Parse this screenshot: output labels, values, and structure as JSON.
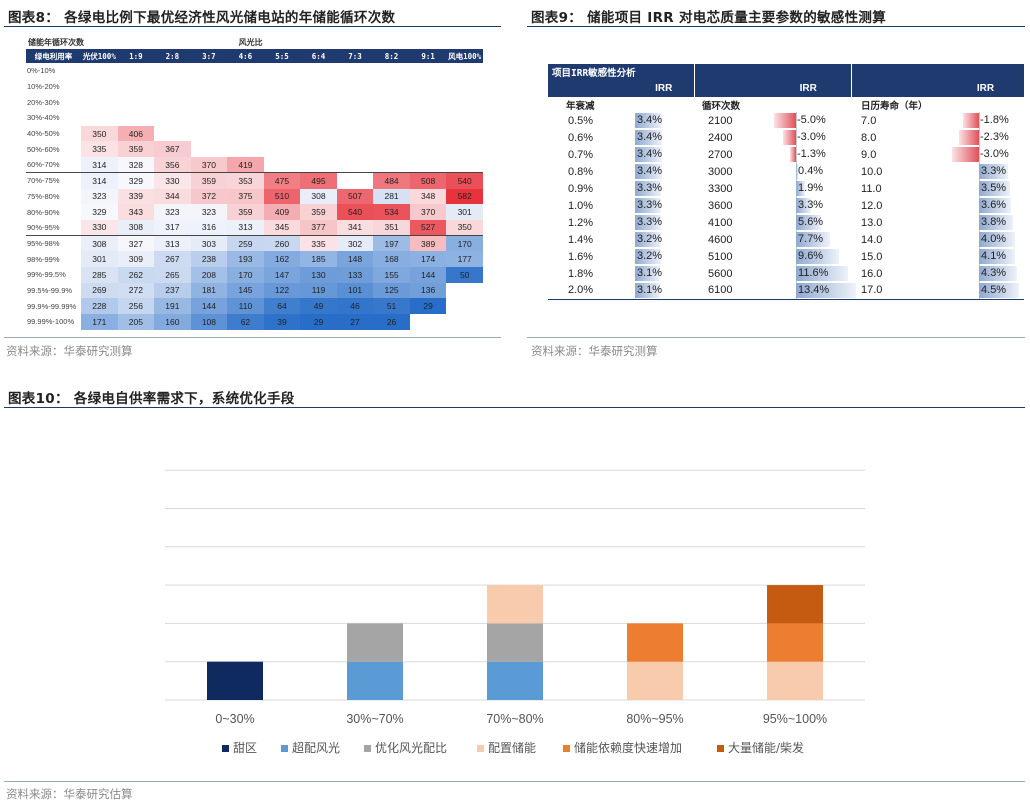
{
  "fig8": {
    "title": "图表8：  各绿电比例下最优经济性风光储电站的年储能循环次数",
    "top_left_label": "储能年循环次数",
    "top_mid_label": "风光比",
    "row_header": "绿电利用率",
    "columns": [
      "光伏100%",
      "1:9",
      "2:8",
      "3:7",
      "4:6",
      "5:5",
      "6:4",
      "7:3",
      "8:2",
      "9:1",
      "风电100%"
    ],
    "rows": [
      {
        "label": "0%-10%",
        "values": [
          "",
          "",
          "",
          "",
          "",
          "",
          "",
          "",
          "",
          "",
          ""
        ]
      },
      {
        "label": "10%-20%",
        "values": [
          "",
          "",
          "",
          "",
          "",
          "",
          "",
          "",
          "",
          "",
          ""
        ]
      },
      {
        "label": "20%-30%",
        "values": [
          "",
          "",
          "",
          "",
          "",
          "",
          "",
          "",
          "",
          "",
          ""
        ]
      },
      {
        "label": "30%-40%",
        "values": [
          "",
          "",
          "",
          "",
          "",
          "",
          "",
          "",
          "",
          "",
          ""
        ]
      },
      {
        "label": "40%-50%",
        "values": [
          "350",
          "406",
          "",
          "",
          "",
          "",
          "",
          "",
          "",
          "",
          ""
        ]
      },
      {
        "label": "50%-60%",
        "values": [
          "335",
          "359",
          "367",
          "",
          "",
          "",
          "",
          "",
          "",
          "",
          ""
        ]
      },
      {
        "label": "60%-70%",
        "values": [
          "314",
          "328",
          "356",
          "370",
          "419",
          "",
          "",
          "",
          "",
          "",
          ""
        ]
      },
      {
        "label": "70%-75%",
        "values": [
          "314",
          "329",
          "330",
          "359",
          "353",
          "475",
          "495",
          "",
          "484",
          "508",
          "540"
        ]
      },
      {
        "label": "75%-80%",
        "values": [
          "323",
          "339",
          "344",
          "372",
          "375",
          "510",
          "308",
          "507",
          "281",
          "348",
          "582"
        ]
      },
      {
        "label": "80%-90%",
        "values": [
          "329",
          "343",
          "323",
          "323",
          "359",
          "409",
          "359",
          "540",
          "534",
          "370",
          "301"
        ]
      },
      {
        "label": "90%-95%",
        "values": [
          "330",
          "308",
          "317",
          "316",
          "313",
          "345",
          "377",
          "341",
          "351",
          "527",
          "350"
        ]
      },
      {
        "label": "95%-98%",
        "values": [
          "308",
          "327",
          "313",
          "303",
          "259",
          "260",
          "335",
          "302",
          "197",
          "389",
          "170"
        ]
      },
      {
        "label": "98%-99%",
        "values": [
          "301",
          "309",
          "267",
          "238",
          "193",
          "162",
          "185",
          "148",
          "168",
          "174",
          "177"
        ]
      },
      {
        "label": "99%-99.5%",
        "values": [
          "285",
          "262",
          "265",
          "208",
          "170",
          "147",
          "130",
          "133",
          "155",
          "144",
          "50"
        ]
      },
      {
        "label": "99.5%-99.9%",
        "values": [
          "269",
          "272",
          "237",
          "181",
          "145",
          "122",
          "119",
          "101",
          "125",
          "136",
          ""
        ]
      },
      {
        "label": "99.9%-99.99%",
        "values": [
          "228",
          "256",
          "191",
          "144",
          "110",
          "64",
          "49",
          "46",
          "51",
          "29",
          ""
        ]
      },
      {
        "label": "99.99%-100%",
        "values": [
          "171",
          "205",
          "160",
          "108",
          "62",
          "39",
          "29",
          "27",
          "26",
          "",
          ""
        ]
      }
    ],
    "source": "资料来源：华泰研究测算"
  },
  "fig9": {
    "title": "图表9：  储能项目 IRR 对电芯质量主要参数的敏感性测算",
    "header_label": "项目IRR敏感性分析",
    "irr_label": "IRR",
    "groups": [
      {
        "name": "年衰减",
        "params": [
          "0.5%",
          "0.6%",
          "0.7%",
          "0.8%",
          "0.9%",
          "1.0%",
          "1.2%",
          "1.4%",
          "1.6%",
          "1.8%",
          "2.0%"
        ],
        "irr": [
          3.4,
          3.4,
          3.4,
          3.4,
          3.3,
          3.3,
          3.3,
          3.2,
          3.2,
          3.1,
          3.1
        ]
      },
      {
        "name": "循环次数",
        "params": [
          "2100",
          "2400",
          "2700",
          "3000",
          "3300",
          "3600",
          "4100",
          "4600",
          "5100",
          "5600",
          "6100"
        ],
        "irr": [
          -5.0,
          -3.0,
          -1.3,
          0.4,
          1.9,
          3.3,
          5.6,
          7.7,
          9.6,
          11.6,
          13.4
        ]
      },
      {
        "name": "日历寿命（年）",
        "params": [
          "7.0",
          "8.0",
          "9.0",
          "10.0",
          "11.0",
          "12.0",
          "13.0",
          "14.0",
          "15.0",
          "16.0",
          "17.0"
        ],
        "irr": [
          -1.8,
          -2.3,
          -3.0,
          3.3,
          3.5,
          3.6,
          3.8,
          4.0,
          4.1,
          4.3,
          4.5
        ]
      }
    ],
    "colors": {
      "positive": "#8fa9cf",
      "negative": "#e0505a"
    },
    "source": "资料来源：华泰研究测算"
  },
  "fig10": {
    "title": "图表10：  各绿电自供率需求下，系统优化手段",
    "source": "资料来源：华泰研究估算",
    "chart_data": {
      "type": "bar",
      "stacked": true,
      "categories": [
        "0~30%",
        "30%~70%",
        "70%~80%",
        "80%~95%",
        "95%~100%"
      ],
      "series": [
        {
          "name": "甜区",
          "color": "#0f2a5e",
          "values": [
            1,
            0,
            0,
            0,
            0
          ]
        },
        {
          "name": "超配风光",
          "color": "#5b9bd5",
          "values": [
            0,
            1,
            1,
            0,
            0
          ]
        },
        {
          "name": "优化风光配比",
          "color": "#a5a5a5",
          "values": [
            0,
            1,
            1,
            0,
            0
          ]
        },
        {
          "name": "配置储能",
          "color": "#f8cbad",
          "values": [
            0,
            0,
            1,
            1,
            1
          ]
        },
        {
          "name": "储能依赖度快速增加",
          "color": "#ed7d31",
          "values": [
            0,
            0,
            0,
            1,
            1
          ]
        },
        {
          "name": "大量储能/柴发",
          "color": "#c55a11",
          "values": [
            0,
            0,
            0,
            0,
            1
          ]
        }
      ],
      "ylim": [
        0,
        6
      ],
      "grid": true,
      "legend": "bottom"
    }
  }
}
